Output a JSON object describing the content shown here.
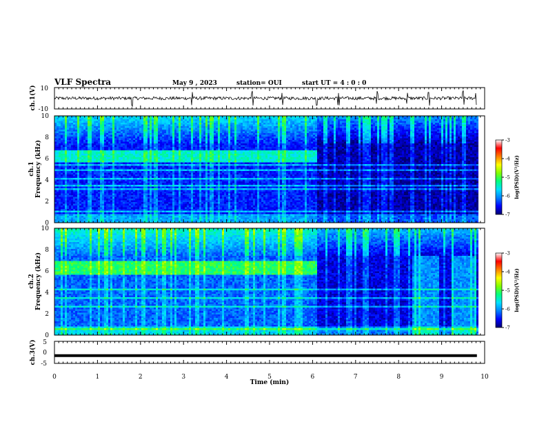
{
  "header": {
    "title": "VLF Spectra",
    "date": "May 9 , 2023",
    "station": "station= OUI",
    "start_ut": "start  UT =   4 : 0  : 0"
  },
  "colors": {
    "colormap": [
      "#000070",
      "#0000ff",
      "#0080ff",
      "#00e0ff",
      "#00ff80",
      "#80ff00",
      "#ffff00",
      "#ff8000",
      "#ff0000",
      "#ffffff"
    ]
  },
  "chart_data": [
    {
      "type": "line",
      "panel": "ch1-waveform",
      "ylabel": "ch.1(V)",
      "ylim": [
        -10,
        10
      ],
      "yticks": [
        "10",
        "-10"
      ],
      "xlim": [
        0,
        10
      ],
      "mean_level": 0,
      "approx_amplitude": 1.5,
      "spikes_min": [
        1.8,
        3.2,
        4.6,
        5.3,
        6.1,
        6.6,
        7.5,
        8.2,
        8.7,
        9.5,
        9.8
      ],
      "data_end_min": 9.82
    },
    {
      "type": "heatmap",
      "panel": "ch1-spectrogram",
      "ylabel": [
        "ch.1",
        "Frequency  (kHz)"
      ],
      "ylim": [
        0,
        10
      ],
      "yticks": [
        "0",
        "2",
        "4",
        "6",
        "8",
        "10"
      ],
      "xlim": [
        0,
        10
      ],
      "data_end_min": 9.82,
      "colorbar": {
        "label": "log(PSD)(V²/Hz)",
        "range": [
          -7,
          -3
        ],
        "ticks": [
          "-3",
          "-4",
          "-5",
          "-6",
          "-7"
        ]
      },
      "features": {
        "emission_band_khz": [
          5.8,
          6.8
        ],
        "emission_level_log_psd": -5.3,
        "emission_ends_min": 6.1,
        "background_level_log_psd": -6.4,
        "post_transition_level_log_psd": -6.8,
        "low_freq_lines_khz": [
          0.4,
          1.1,
          1.7,
          2.5,
          3.2,
          3.5,
          4.2,
          5.0,
          5.5
        ],
        "high_freq_noise_above_khz": 7.5
      }
    },
    {
      "type": "heatmap",
      "panel": "ch2-spectrogram",
      "ylabel": [
        "ch.2",
        "Frequency  (kHz)"
      ],
      "ylim": [
        0,
        10
      ],
      "yticks": [
        "0",
        "2",
        "4",
        "6",
        "8",
        "10"
      ],
      "xlim": [
        0,
        10
      ],
      "data_end_min": 9.82,
      "colorbar": {
        "label": "log(PSD)(V²/Hz)",
        "range": [
          -7,
          -3
        ],
        "ticks": [
          "-3",
          "-4",
          "-5",
          "-6",
          "-7"
        ]
      },
      "features": {
        "emission_band_khz": [
          5.8,
          7.0
        ],
        "emission_level_log_psd": -4.9,
        "emission_ends_min": 6.1,
        "background_level_log_psd": -6.1,
        "post_transition_level_log_psd": -6.6,
        "enhanced_patches_min": [
          [
            8.3,
            8.9
          ],
          [
            9.2,
            9.8
          ]
        ],
        "low_freq_lines_khz": [
          0.6,
          1.2,
          2.0,
          2.8,
          3.6,
          4.3,
          5.1
        ],
        "high_freq_noise_above_khz": 7.5
      }
    },
    {
      "type": "line",
      "panel": "ch3-waveform",
      "ylabel": "ch.3(V)",
      "ylim": [
        -5,
        5
      ],
      "yticks": [
        "5",
        "0",
        "-5"
      ],
      "xlim": [
        0,
        10
      ],
      "xticks": [
        "0",
        "1",
        "2",
        "3",
        "4",
        "5",
        "6",
        "7",
        "8",
        "9",
        "10"
      ],
      "xlabel": "Time  (min)",
      "level": -1.5,
      "data_end_min": 9.82
    }
  ]
}
